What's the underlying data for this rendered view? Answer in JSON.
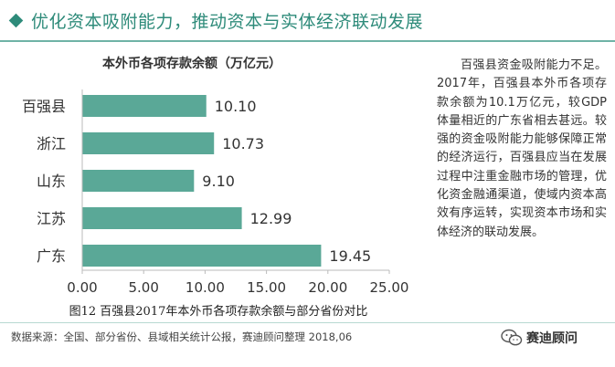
{
  "header": {
    "title": "优化资本吸附能力，推动资本与实体经济联动发展"
  },
  "chart_data": {
    "type": "bar",
    "orientation": "horizontal",
    "title": "本外币各项存款余额（万亿元）",
    "categories": [
      "百强县",
      "浙江",
      "山东",
      "江苏",
      "广东"
    ],
    "values": [
      10.1,
      10.73,
      9.1,
      12.99,
      19.45
    ],
    "value_labels": [
      "10.10",
      "10.73",
      "9.10",
      "12.99",
      "19.45"
    ],
    "xlim": [
      0,
      25
    ],
    "xticks": [
      "0.00",
      "5.00",
      "10.00",
      "15.00",
      "20.00",
      "25.00"
    ],
    "grid": false,
    "legend": "none",
    "bar_color": "#5aa897"
  },
  "side_text": "百强县资金吸附能力不足。2017年，百强县本外币各项存款余额为10.1万亿元，较GDP体量相近的广东省相去甚远。较强的资金吸附能力能够保障正常的经济运行，百强县应当在发展过程中注重金融市场的管理，优化资金融通渠道，使域内资本高效有序运转，实现资本市场和实体经济的联动发展。",
  "caption": "图12  百强县2017年本外币各项存款余额与部分省份对比",
  "footer": {
    "source": "数据来源：全国、部分省份、县域相关统计公报，赛迪顾问整理      2018,06",
    "brand": "赛迪顾问",
    "brand_icon": "wechat-icon"
  },
  "colors": {
    "accent": "#2e8b7a",
    "bar": "#5aa897"
  }
}
